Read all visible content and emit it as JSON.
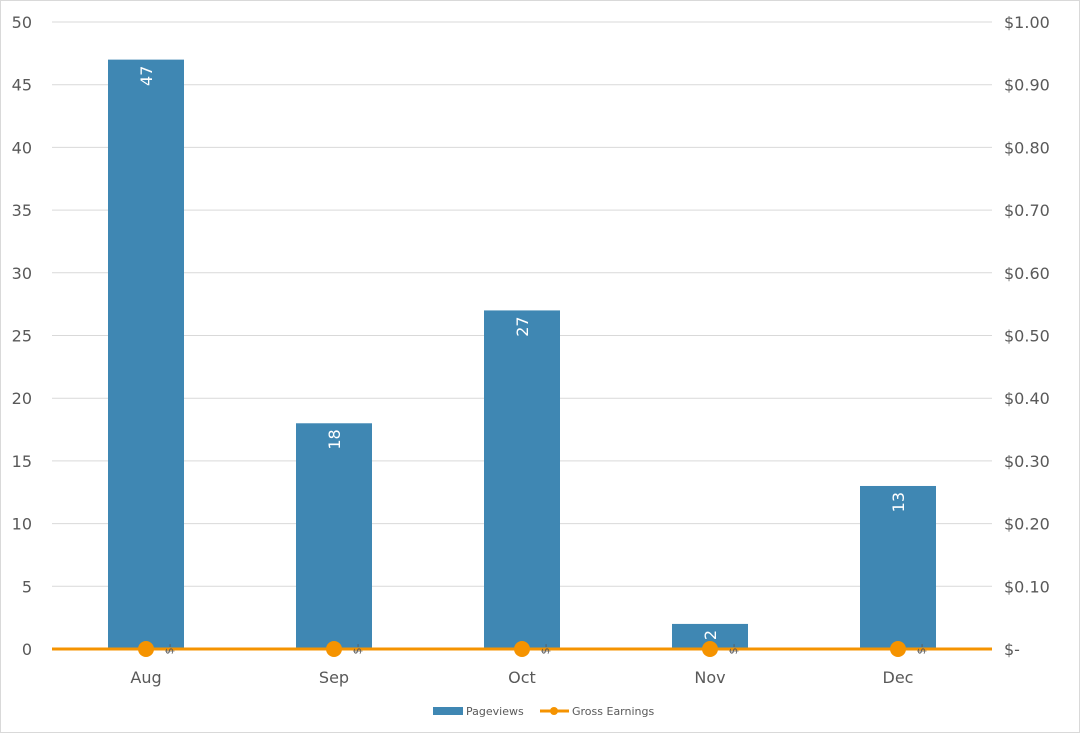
{
  "chart_data": {
    "type": "bar",
    "categories": [
      "Aug",
      "Sep",
      "Oct",
      "Nov",
      "Dec"
    ],
    "series": [
      {
        "name": "Pageviews",
        "type": "bar",
        "axis": "left",
        "values": [
          47,
          18,
          27,
          2,
          13
        ],
        "labels": [
          "47",
          "18",
          "27",
          "2",
          "13"
        ],
        "color": "#3f87b3"
      },
      {
        "name": "Gross Earnings",
        "type": "line",
        "axis": "right",
        "values": [
          0,
          0,
          0,
          0,
          0
        ],
        "labels": [
          "$-",
          "$-",
          "$-",
          "$-",
          "$-"
        ],
        "color": "#f59300"
      }
    ],
    "left_axis": {
      "min": 0,
      "max": 50,
      "step": 5,
      "ticks": [
        "0",
        "5",
        "10",
        "15",
        "20",
        "25",
        "30",
        "35",
        "40",
        "45",
        "50"
      ]
    },
    "right_axis": {
      "min": 0,
      "max": 1,
      "step": 0.1,
      "ticks": [
        "$-",
        "$0.10",
        "$0.20",
        "$0.30",
        "$0.40",
        "$0.50",
        "$0.60",
        "$0.70",
        "$0.80",
        "$0.90",
        "$1.00"
      ]
    },
    "grid": true,
    "legend": "bottom"
  }
}
